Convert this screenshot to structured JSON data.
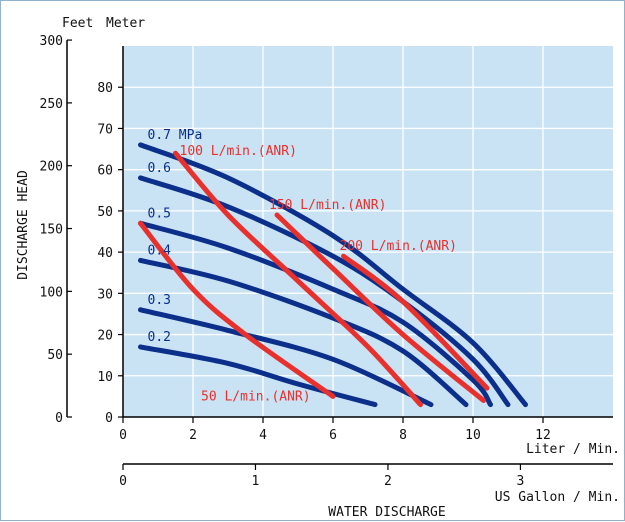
{
  "chart_data": {
    "type": "line",
    "xlabel": "WATER DISCHARGE",
    "ylabel": "DISCHARGE HEAD",
    "x_primary": {
      "unit": "Liter / Min.",
      "range": [
        0,
        14
      ],
      "ticks": [
        0,
        2,
        4,
        6,
        8,
        10,
        12
      ]
    },
    "x_secondary": {
      "unit": "US Gallon / Min.",
      "ticks": [
        0,
        1,
        2,
        3
      ]
    },
    "y_meter": {
      "unit": "Meter",
      "range": [
        0,
        90
      ],
      "ticks": [
        0,
        10,
        20,
        30,
        40,
        50,
        60,
        70,
        80
      ]
    },
    "y_feet": {
      "unit": "Feet",
      "ticks": [
        0,
        50,
        100,
        150,
        200,
        250,
        300
      ]
    },
    "grid": true,
    "pressure_series": [
      {
        "name": "0.7 MPa",
        "color": "#0b2f8a",
        "points": [
          [
            0.5,
            66
          ],
          [
            3,
            58
          ],
          [
            6,
            44
          ],
          [
            8,
            31
          ],
          [
            10,
            18
          ],
          [
            11.5,
            3
          ]
        ]
      },
      {
        "name": "0.6",
        "color": "#0b2f8a",
        "points": [
          [
            0.5,
            58
          ],
          [
            3,
            51
          ],
          [
            6,
            39
          ],
          [
            8,
            28
          ],
          [
            10,
            14
          ],
          [
            11,
            3
          ]
        ]
      },
      {
        "name": "0.5",
        "color": "#0b2f8a",
        "points": [
          [
            0.5,
            47
          ],
          [
            3,
            41
          ],
          [
            6,
            31
          ],
          [
            8,
            23
          ],
          [
            10,
            9
          ],
          [
            10.5,
            3
          ]
        ]
      },
      {
        "name": "0.4",
        "color": "#0b2f8a",
        "points": [
          [
            0.5,
            38
          ],
          [
            3,
            33
          ],
          [
            6,
            24
          ],
          [
            8,
            16
          ],
          [
            9.8,
            3
          ]
        ]
      },
      {
        "name": "0.3",
        "color": "#0b2f8a",
        "points": [
          [
            0.5,
            26
          ],
          [
            3,
            21
          ],
          [
            6,
            14
          ],
          [
            8.8,
            3
          ]
        ]
      },
      {
        "name": "0.2",
        "color": "#0b2f8a",
        "points": [
          [
            0.5,
            17
          ],
          [
            3,
            13
          ],
          [
            5,
            8
          ],
          [
            7.2,
            3
          ]
        ]
      }
    ],
    "air_series": [
      {
        "name": "50 L/min.(ANR)",
        "color": "#e8302c",
        "points": [
          [
            0.5,
            47
          ],
          [
            2,
            31
          ],
          [
            3.5,
            20
          ],
          [
            6,
            5
          ]
        ]
      },
      {
        "name": "100 L/min.(ANR)",
        "color": "#e8302c",
        "points": [
          [
            1.5,
            64
          ],
          [
            3,
            49
          ],
          [
            5,
            33
          ],
          [
            7,
            17
          ],
          [
            8.5,
            3
          ]
        ]
      },
      {
        "name": "150 L/min.(ANR)",
        "color": "#e8302c",
        "points": [
          [
            4.4,
            49
          ],
          [
            6,
            36
          ],
          [
            8,
            20
          ],
          [
            10.3,
            4
          ]
        ]
      },
      {
        "name": "200 L/min.(ANR)",
        "color": "#e8302c",
        "points": [
          [
            6.3,
            39
          ],
          [
            8,
            28
          ],
          [
            10.4,
            7
          ]
        ]
      }
    ]
  }
}
